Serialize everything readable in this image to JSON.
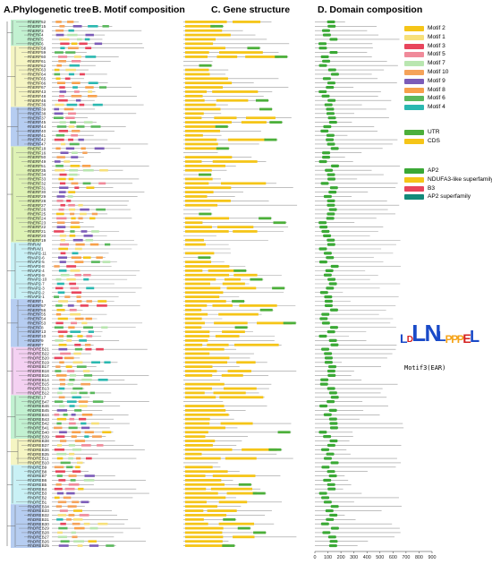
{
  "panels": {
    "a": "A.Phylogenetic tree",
    "b": "B. Motif composition",
    "c": "C. Gene structure",
    "d": "D. Domain composition"
  },
  "genes": [
    "RhERF52",
    "RhERF15",
    "RhERF3",
    "RhERF4",
    "RhERF5",
    "RhERF6",
    "RhERF58",
    "RhERF59",
    "RhERF60",
    "RhERF61",
    "RhERF62",
    "RhERF63",
    "RhERF64",
    "RhERF65",
    "RhERF66",
    "RhERF67",
    "RhERF43",
    "RhERF48",
    "RhERF46",
    "RhERF36",
    "RhERF39",
    "RhERF38",
    "RhERF37",
    "RhERF45",
    "RhERF44",
    "RhERF40",
    "RhERF41",
    "RhERF42",
    "RhERF47",
    "RhERF18",
    "RhERF16",
    "RhERF50",
    "RhERF49",
    "RhERF51",
    "RhERF35",
    "RhERF34",
    "RhERF33",
    "RhERF32",
    "RhERF31",
    "RhERF30",
    "RhERF29",
    "RhERF28",
    "RhERF27",
    "RhERF26",
    "RhERF25",
    "RhERF24",
    "RhERF23",
    "RhERF22",
    "RhERF21",
    "RhERF20",
    "RhERF19",
    "RhRAV",
    "RhRAV1",
    "RhAP2-11",
    "RhAP2-6",
    "RhAP2-5",
    "RhAP2-8",
    "RhAP2-4",
    "RhAP2-9",
    "RhAP2-10",
    "RhAP2-7",
    "RhAP2-3",
    "RhAP2-2",
    "RhAP2-1",
    "RhERF1",
    "RhERF57",
    "RhERF56",
    "RhERF55",
    "RhERF54",
    "RhERF53",
    "RhERF8",
    "RhERF13",
    "RhERF10",
    "RhERF9",
    "RhERF7",
    "RhDREB21",
    "RhDREB22",
    "RhDREB20",
    "RhDREB19",
    "RhDREB17",
    "RhDREB18",
    "RhDREB16",
    "RhDREB14",
    "RhDREB15",
    "RhDREB13",
    "RhDREB12",
    "RhERF17",
    "RhDREB47",
    "RhDREB46",
    "RhDREB45",
    "RhDREB44",
    "RhDREB43",
    "RhDREB42",
    "RhDREB41",
    "RhDREB40",
    "RhDREB39",
    "RhDREB38",
    "RhDREB37",
    "RhDREB36",
    "RhDREB35",
    "RhDREB11",
    "RhDREB10",
    "RhDREB9",
    "RhDREB8",
    "RhDREB7",
    "RhDREB6",
    "RhDREB5",
    "RhDREB4",
    "RhDREB3",
    "RhDREB2",
    "RhDREB1",
    "RhDREB34",
    "RhDREB33",
    "RhDREB32",
    "RhDREB31",
    "RhDREB30",
    "RhDREB29",
    "RhDREB28",
    "RhDREB27",
    "RhDREB26",
    "RhDREB25"
  ],
  "motif_legend": [
    {
      "label": "Motif 2",
      "color": "#f5c518"
    },
    {
      "label": "Motif 1",
      "color": "#f7e07a"
    },
    {
      "label": "Motif 3",
      "color": "#e8455c"
    },
    {
      "label": "Motif 5",
      "color": "#f08a9a"
    },
    {
      "label": "Motif 7",
      "color": "#b9e6b0"
    },
    {
      "label": "Motif 10",
      "color": "#f5a35a"
    },
    {
      "label": "Motif 9",
      "color": "#7c5cb8"
    },
    {
      "label": "Motif 8",
      "color": "#f7a04a"
    },
    {
      "label": "Motif 6",
      "color": "#5ab85c"
    },
    {
      "label": "Motif 4",
      "color": "#2ab8b0"
    }
  ],
  "structure_legend": [
    {
      "label": "UTR",
      "color": "#4caf3a"
    },
    {
      "label": "CDS",
      "color": "#f5c518"
    }
  ],
  "domain_legend": [
    {
      "label": "AP2",
      "color": "#3aa835"
    },
    {
      "label": "NDUFA3-like superfamily",
      "color": "#f5c518"
    },
    {
      "label": "B3",
      "color": "#e8455c"
    },
    {
      "label": "AP2 superfamily",
      "color": "#128a7a"
    }
  ],
  "logo": {
    "caption": "Motif3(EAR)",
    "letters": [
      "L",
      "D",
      "L",
      "N",
      "L",
      "P",
      "P",
      "P",
      "E",
      "L"
    ],
    "colors": [
      "#1a4ac8",
      "#d42020",
      "#1a4ac8",
      "#1a4ac8",
      "#1a4ac8",
      "#f5a318",
      "#f5a318",
      "#f5a318",
      "#d42020",
      "#1a4ac8"
    ]
  },
  "domain_axis": {
    "ticks": [
      "0",
      "100",
      "200",
      "300",
      "400",
      "500",
      "600",
      "700",
      "800",
      "900"
    ]
  },
  "clade_colors": [
    "#b7eec9",
    "#f3f3b8",
    "#a9c4ee",
    "#d8f0a8",
    "#bfeef3",
    "#a9c4ee",
    "#f2c9f0",
    "#b7eec9",
    "#f3f3b8",
    "#bfeef3",
    "#a9c4ee"
  ]
}
